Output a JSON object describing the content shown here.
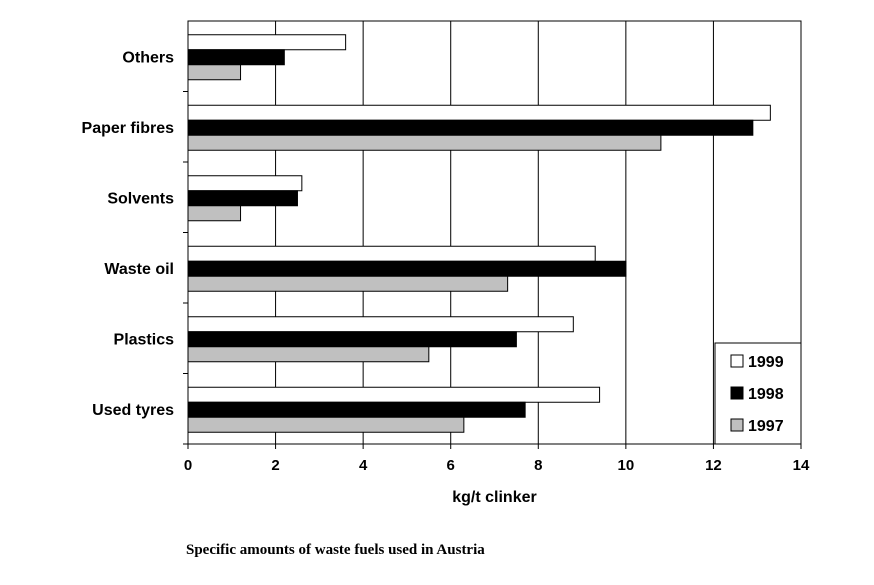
{
  "caption": "Specific amounts of waste fuels used in Austria",
  "chart_data": {
    "type": "bar",
    "orientation": "horizontal",
    "categories": [
      "Others",
      "Paper fibres",
      "Solvents",
      "Waste oil",
      "Plastics",
      "Used tyres"
    ],
    "series": [
      {
        "name": "1999",
        "color": "#ffffff",
        "values": [
          3.6,
          13.3,
          2.6,
          9.3,
          8.8,
          9.4
        ]
      },
      {
        "name": "1998",
        "color": "#000000",
        "values": [
          2.2,
          12.9,
          2.5,
          10.0,
          7.5,
          7.7
        ]
      },
      {
        "name": "1997",
        "color": "#c0c0c0",
        "values": [
          1.2,
          10.8,
          1.2,
          7.3,
          5.5,
          6.3
        ]
      }
    ],
    "xlabel": "kg/t clinker",
    "ylabel": "",
    "xlim": [
      0,
      14
    ],
    "xticks": [
      "0",
      "2",
      "4",
      "6",
      "8",
      "10",
      "12",
      "14"
    ],
    "grid": "vertical",
    "legend_position": "bottom-right"
  }
}
